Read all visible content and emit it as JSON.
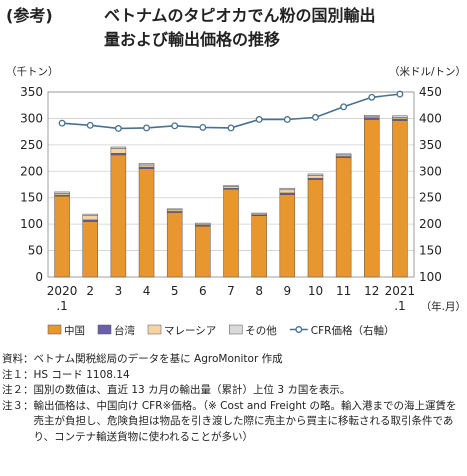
{
  "title": {
    "prefix": "(参考)",
    "line1": "ベトナムのタピオカでん粉の国別輸出",
    "line2": "量および輸出価格の推移"
  },
  "chart_data": {
    "type": "bar",
    "stacked": true,
    "left_unit": "（千トン）",
    "right_unit": "（米ドル/トン）",
    "x_unit": "（年.月）",
    "categories": [
      "2020\n.1",
      "2",
      "3",
      "4",
      "5",
      "6",
      "7",
      "8",
      "9",
      "10",
      "11",
      "12",
      "2021\n.1"
    ],
    "ylim": [
      0,
      350
    ],
    "yticks": [
      0,
      50,
      100,
      150,
      200,
      250,
      300,
      350
    ],
    "y2lim": [
      100,
      450
    ],
    "y2ticks": [
      100,
      150,
      200,
      250,
      300,
      350,
      400,
      450
    ],
    "grid": true,
    "legend_position": "bottom",
    "series": [
      {
        "name": "中国",
        "type": "bar",
        "color": "#E8962E",
        "values": [
          153,
          105,
          231,
          205,
          122,
          96,
          166,
          116,
          156,
          184,
          226,
          298,
          296
        ]
      },
      {
        "name": "台湾",
        "type": "bar",
        "color": "#6A5FA8",
        "values": [
          2,
          3,
          3,
          3,
          2,
          2,
          2,
          1,
          3,
          3,
          2,
          3,
          3
        ]
      },
      {
        "name": "マレーシア",
        "type": "bar",
        "color": "#F6D3A4",
        "values": [
          3,
          8,
          9,
          4,
          3,
          2,
          3,
          2,
          6,
          5,
          3,
          2,
          3
        ]
      },
      {
        "name": "その他",
        "type": "bar",
        "color": "#D9D9D9",
        "values": [
          3,
          3,
          3,
          3,
          2,
          2,
          2,
          2,
          3,
          3,
          2,
          3,
          3
        ]
      },
      {
        "name": "CFR価格（右軸）",
        "type": "line",
        "axis": "right",
        "color": "#4A7090",
        "values": [
          391,
          387,
          381,
          382,
          386,
          383,
          382,
          398,
          398,
          402,
          422,
          440,
          446
        ]
      }
    ]
  },
  "notes": [
    {
      "key": "資料：",
      "text": "ベトナム関税総局のデータを基に AgroMonitor 作成"
    },
    {
      "key": "注１：",
      "text": "HS コード 1108.14"
    },
    {
      "key": "注２：",
      "text": "国別の数値は、直近 13 カ月の輸出量（累計）上位 3 カ国を表示。"
    },
    {
      "key": "注３：",
      "text": "輸出価格は、中国向け CFR※価格。（※ Cost and Freight の略。輸入港までの海上運賃を売主が負担し、危険負担は物品を引き渡した際に売主から買主に移転される取引条件であり、コンテナ輸送貨物に使われることが多い）"
    }
  ]
}
